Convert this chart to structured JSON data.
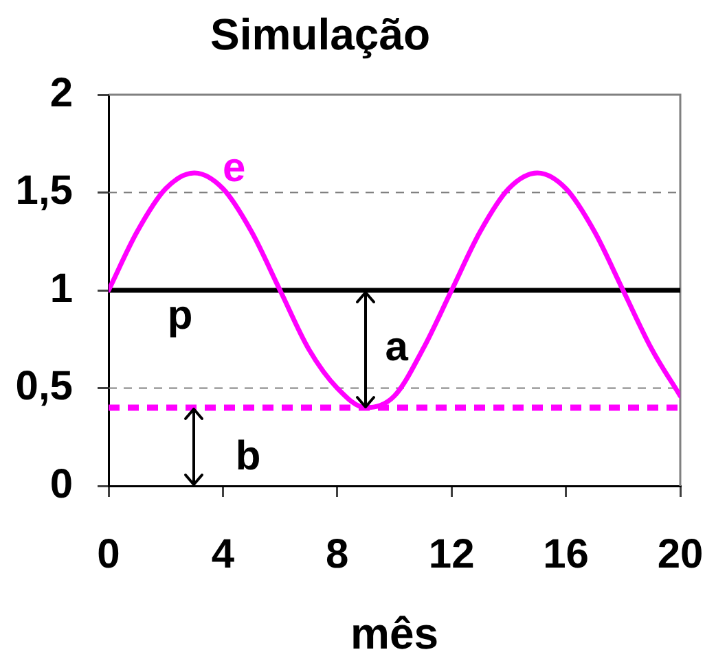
{
  "chart_data": {
    "type": "line",
    "title": "Simulação",
    "xlabel": "mês",
    "x": [
      0,
      1,
      2,
      3,
      4,
      5,
      6,
      7,
      8,
      9,
      10,
      11,
      12,
      13,
      14,
      15,
      16,
      17,
      18,
      19,
      20
    ],
    "series": [
      {
        "name": "e",
        "color": "#ff00ff",
        "values": [
          1,
          1.3,
          1.52,
          1.6,
          1.52,
          1.3,
          1,
          0.7,
          0.5,
          0.4,
          0.46,
          0.7,
          1,
          1.3,
          1.52,
          1.6,
          1.52,
          1.3,
          1,
          0.7,
          0.46
        ]
      },
      {
        "name": "p",
        "color": "#000000",
        "values": [
          1,
          1,
          1,
          1,
          1,
          1,
          1,
          1,
          1,
          1,
          1,
          1,
          1,
          1,
          1,
          1,
          1,
          1,
          1,
          1,
          1
        ]
      }
    ],
    "xlim": [
      0,
      20
    ],
    "xticks": [
      0,
      4,
      8,
      12,
      16,
      20
    ],
    "ylim": [
      0,
      2
    ],
    "yticks": [
      0,
      {
        "value": 0.5,
        "label": "0,5"
      },
      1,
      {
        "value": 1.5,
        "label": "1,5"
      },
      2
    ],
    "ref_lines": [
      {
        "axis": "y",
        "value": 0.4,
        "color": "#ff00ff",
        "line_style": "dashed"
      }
    ],
    "annotations": [
      "a",
      "b"
    ],
    "grid": "y",
    "legend": false
  }
}
